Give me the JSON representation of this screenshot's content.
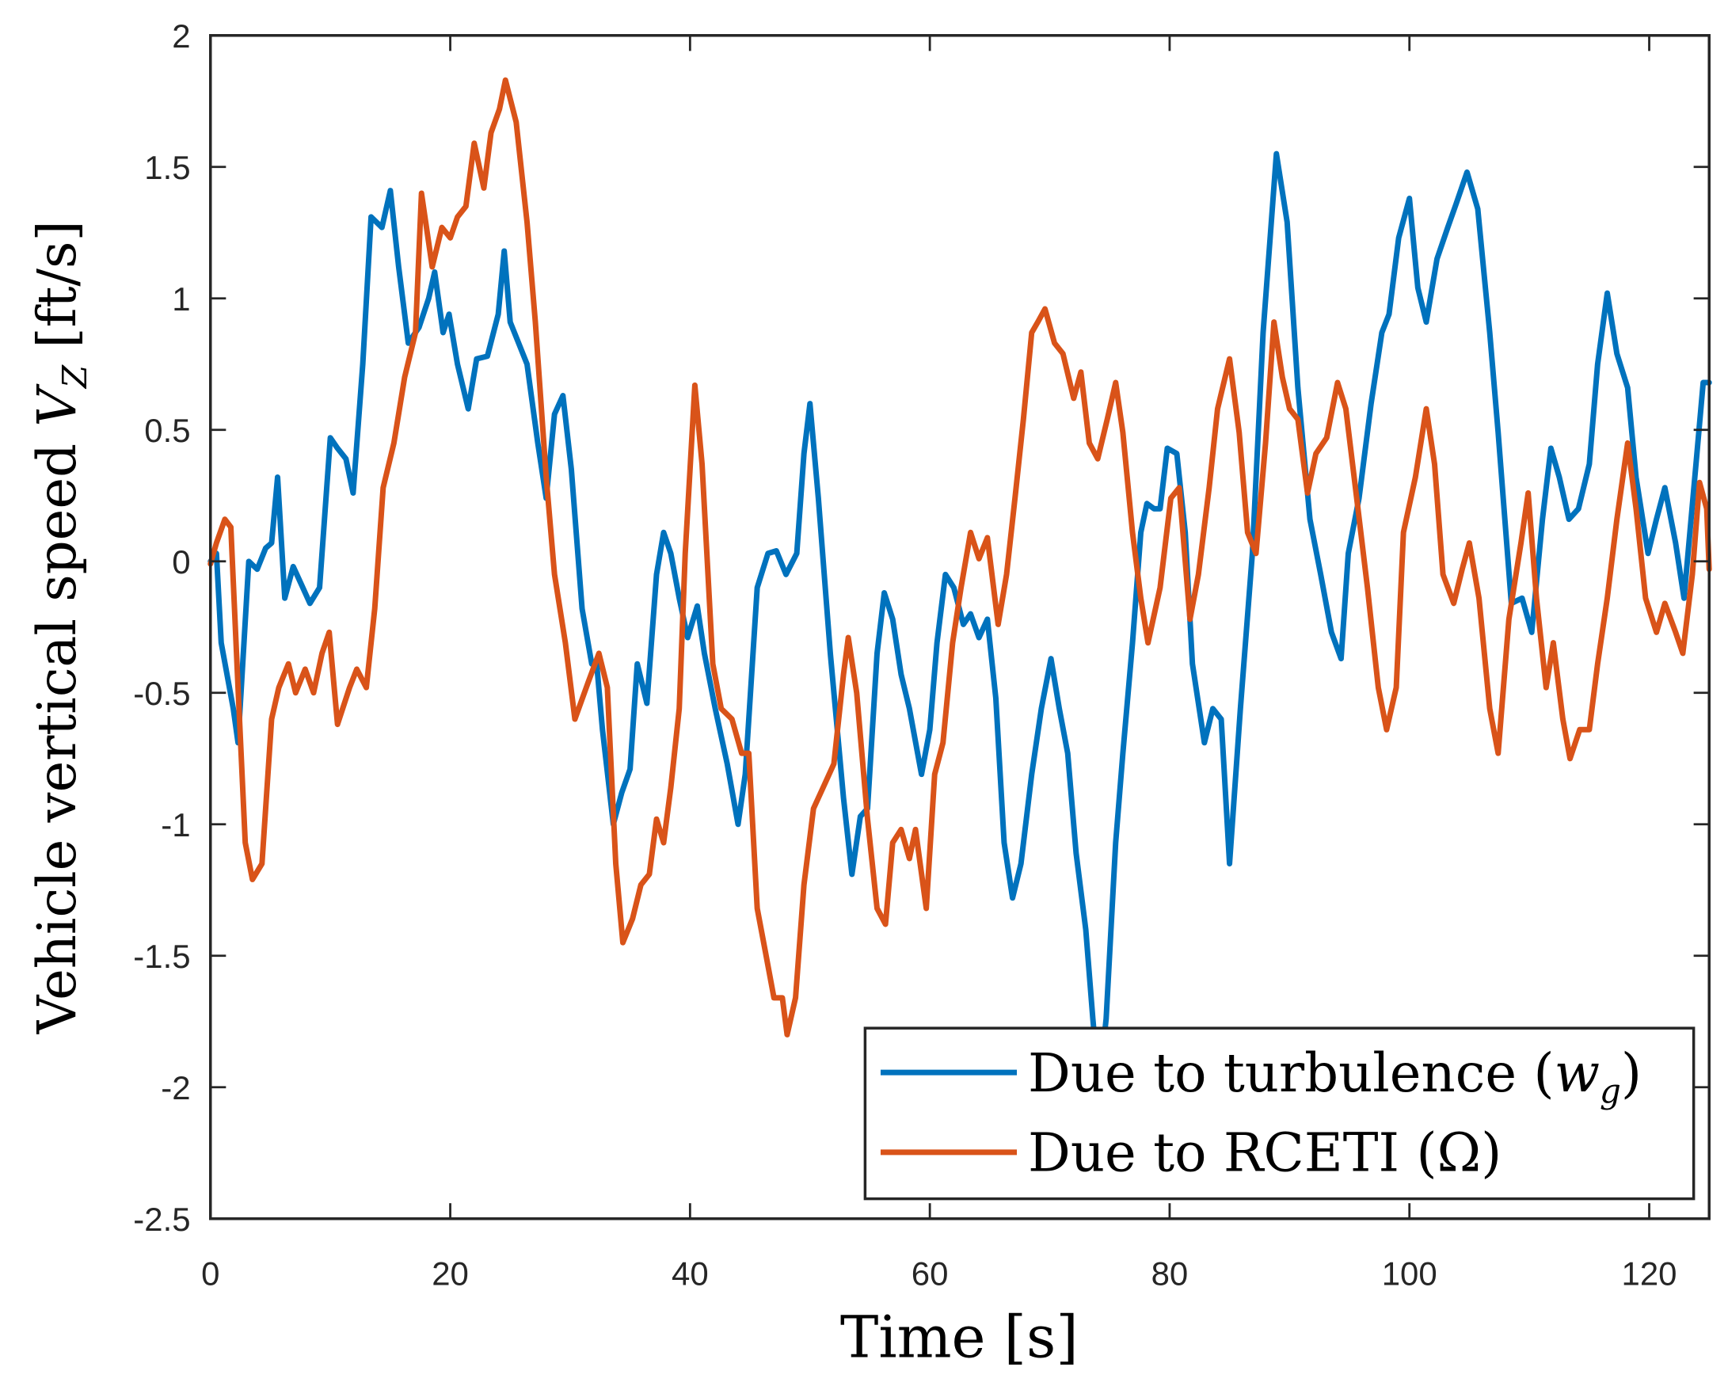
{
  "chart_data": {
    "type": "line",
    "title": "",
    "xlabel": "Time [s]",
    "ylabel": {
      "text": "Vehicle vertical speed ",
      "var": "V",
      "sub": "Z",
      "unit": " [ft/s]"
    },
    "xlim": [
      0,
      125
    ],
    "ylim": [
      -2.5,
      2
    ],
    "xticks": [
      0,
      20,
      40,
      60,
      80,
      100,
      120
    ],
    "yticks": [
      -2.5,
      -2,
      -1.5,
      -1,
      -0.5,
      0,
      0.5,
      1,
      1.5,
      2
    ],
    "grid": false,
    "legend_position": "bottom-right",
    "series": [
      {
        "name": "Due to turbulence (w_g)",
        "legend": {
          "text": "Due to turbulence (",
          "var": "w",
          "sub": "g",
          "close": ")"
        },
        "color": "#0072BD",
        "x": [
          0,
          0.5,
          0.9,
          1.9,
          2.3,
          3.2,
          3.9,
          4.6,
          5.1,
          5.6,
          6.2,
          6.9,
          7.6,
          8.3,
          9.1,
          10,
          10.6,
          11.3,
          11.9,
          12.7,
          13.4,
          14.3,
          15,
          15.7,
          16.5,
          17.4,
          18.2,
          18.7,
          19.4,
          19.9,
          20.6,
          21.5,
          22.2,
          23.1,
          24,
          24.5,
          25,
          25.7,
          26.4,
          27.3,
          28,
          28.7,
          29.4,
          30.1,
          31,
          31.8,
          32.2,
          32.7,
          33.6,
          34.3,
          35,
          35.6,
          36.4,
          37.2,
          37.8,
          38.4,
          39.1,
          39.8,
          40.6,
          41.2,
          42.1,
          43.1,
          44,
          44.6,
          45.6,
          46.5,
          47.2,
          48,
          48.9,
          49.5,
          50,
          50.7,
          51.7,
          52.8,
          53.5,
          54.2,
          54.8,
          55.6,
          56.2,
          56.9,
          57.6,
          58.3,
          59.3,
          60,
          60.6,
          61.3,
          62,
          62.8,
          63.4,
          64.1,
          64.8,
          65.5,
          66.2,
          66.9,
          67.6,
          68.5,
          69.3,
          70.1,
          70.8,
          71.5,
          72.2,
          73,
          73.6,
          74.1,
          74.7,
          75.5,
          76.1,
          76.9,
          77.6,
          78.1,
          78.7,
          79.2,
          79.8,
          80.6,
          81.3,
          81.9,
          82.9,
          83.6,
          84.3,
          85,
          85.9,
          86.9,
          87.8,
          88.9,
          89.8,
          90.7,
          91.7,
          92.6,
          93.5,
          94.3,
          94.9,
          95.8,
          96.8,
          97.7,
          98.3,
          99.1,
          100,
          100.7,
          101.4,
          102.3,
          103.2,
          103.9,
          104.8,
          105.7,
          106.7,
          107.4,
          108.5,
          109.4,
          110.2,
          111.1,
          111.8,
          112.5,
          113.3,
          114.1,
          115,
          115.7,
          116.5,
          117.3,
          118.2,
          118.9,
          119.9,
          120.6,
          121.3,
          122.2,
          122.9,
          123.9,
          124.5,
          125
        ],
        "y": [
          0,
          0.03,
          -0.31,
          -0.56,
          -0.69,
          0,
          -0.03,
          0.05,
          0.07,
          0.32,
          -0.14,
          -0.02,
          -0.09,
          -0.16,
          -0.1,
          0.47,
          0.43,
          0.39,
          0.26,
          0.75,
          1.31,
          1.27,
          1.41,
          1.12,
          0.83,
          0.89,
          1.0,
          1.1,
          0.87,
          0.94,
          0.75,
          0.58,
          0.77,
          0.78,
          0.94,
          1.18,
          0.91,
          0.83,
          0.75,
          0.45,
          0.24,
          0.56,
          0.63,
          0.35,
          -0.18,
          -0.39,
          -0.38,
          -0.64,
          -1.0,
          -0.88,
          -0.79,
          -0.39,
          -0.54,
          -0.05,
          0.11,
          0.03,
          -0.14,
          -0.29,
          -0.17,
          -0.35,
          -0.56,
          -0.77,
          -1.0,
          -0.81,
          -0.1,
          0.03,
          0.04,
          -0.05,
          0.03,
          0.41,
          0.6,
          0.24,
          -0.35,
          -0.9,
          -1.19,
          -0.97,
          -0.94,
          -0.35,
          -0.12,
          -0.22,
          -0.43,
          -0.56,
          -0.81,
          -0.64,
          -0.31,
          -0.05,
          -0.1,
          -0.24,
          -0.2,
          -0.29,
          -0.22,
          -0.52,
          -1.07,
          -1.28,
          -1.15,
          -0.81,
          -0.56,
          -0.37,
          -0.56,
          -0.73,
          -1.11,
          -1.4,
          -1.74,
          -2.0,
          -1.74,
          -1.07,
          -0.73,
          -0.31,
          0.11,
          0.22,
          0.2,
          0.2,
          0.43,
          0.41,
          0.11,
          -0.39,
          -0.69,
          -0.56,
          -0.6,
          -1.15,
          -0.56,
          0.03,
          0.87,
          1.55,
          1.29,
          0.66,
          0.16,
          -0.05,
          -0.27,
          -0.37,
          0.03,
          0.24,
          0.6,
          0.87,
          0.94,
          1.23,
          1.38,
          1.04,
          0.91,
          1.15,
          1.27,
          1.36,
          1.48,
          1.34,
          0.87,
          0.49,
          -0.16,
          -0.14,
          -0.27,
          0.16,
          0.43,
          0.32,
          0.16,
          0.2,
          0.37,
          0.75,
          1.02,
          0.79,
          0.66,
          0.32,
          0.03,
          0.16,
          0.28,
          0.07,
          -0.14,
          0.37,
          0.68,
          0.68
        ]
      },
      {
        "name": "Due to RCETI (Ω)",
        "legend": {
          "text": "Due to RCETI (Ω)"
        },
        "color": "#D95319",
        "x": [
          0,
          0.5,
          1.2,
          1.7,
          2.3,
          2.9,
          3.5,
          4.3,
          5.1,
          5.7,
          6.5,
          7.1,
          7.9,
          8.6,
          9.3,
          9.9,
          10.6,
          11.6,
          12.2,
          13,
          13.7,
          14.4,
          15.3,
          16.2,
          17.1,
          17.6,
          18.5,
          19.3,
          20,
          20.6,
          21.3,
          22,
          22.8,
          23.4,
          24.1,
          24.6,
          25.5,
          26.4,
          27.1,
          28,
          28.7,
          29.6,
          30.4,
          31.5,
          32.4,
          33.1,
          33.8,
          34.4,
          35.2,
          35.9,
          36.6,
          37.2,
          37.8,
          38.4,
          39.1,
          39.6,
          40.4,
          41,
          41.9,
          42.6,
          43.5,
          44.3,
          44.9,
          45.6,
          46.3,
          47,
          47.7,
          48.1,
          48.8,
          49.5,
          50.3,
          51.1,
          52,
          52.8,
          53.2,
          53.9,
          54.8,
          55.6,
          56.3,
          56.9,
          57.6,
          58.3,
          58.8,
          59.7,
          60.4,
          61.1,
          61.9,
          62.6,
          63.4,
          64.1,
          64.8,
          65.7,
          66.4,
          67.1,
          67.8,
          68.5,
          69,
          69.6,
          70.4,
          71.1,
          72,
          72.6,
          73.3,
          74,
          74.8,
          75.5,
          76.1,
          76.9,
          77.6,
          78.2,
          79.2,
          80.1,
          80.8,
          81.7,
          82.4,
          83.3,
          84,
          85,
          85.8,
          86.5,
          87.2,
          88,
          88.7,
          89.4,
          90,
          90.7,
          91.5,
          92.2,
          93.1,
          94,
          94.7,
          95.6,
          96.5,
          97.4,
          98.1,
          98.9,
          99.5,
          100.5,
          101.4,
          102.1,
          102.8,
          103.7,
          104.4,
          105,
          105.8,
          106.7,
          107.4,
          108.3,
          109.3,
          109.9,
          110.6,
          111.4,
          112,
          112.8,
          113.4,
          114.2,
          115,
          115.7,
          116.5,
          117.3,
          118.2,
          118.9,
          119.7,
          120.6,
          121.3,
          122.2,
          122.8,
          123.6,
          124.2,
          124.8,
          125
        ],
        "y": [
          -0.01,
          0.07,
          0.16,
          0.13,
          -0.48,
          -1.07,
          -1.21,
          -1.15,
          -0.6,
          -0.48,
          -0.39,
          -0.5,
          -0.41,
          -0.5,
          -0.35,
          -0.27,
          -0.62,
          -0.48,
          -0.41,
          -0.48,
          -0.18,
          0.28,
          0.45,
          0.7,
          0.87,
          1.4,
          1.12,
          1.27,
          1.23,
          1.31,
          1.35,
          1.59,
          1.42,
          1.63,
          1.72,
          1.83,
          1.67,
          1.29,
          0.91,
          0.32,
          -0.05,
          -0.31,
          -0.6,
          -0.46,
          -0.35,
          -0.48,
          -1.15,
          -1.45,
          -1.36,
          -1.23,
          -1.19,
          -0.98,
          -1.07,
          -0.86,
          -0.56,
          0.03,
          0.67,
          0.37,
          -0.39,
          -0.56,
          -0.6,
          -0.73,
          -0.73,
          -1.32,
          -1.49,
          -1.66,
          -1.66,
          -1.8,
          -1.66,
          -1.23,
          -0.94,
          -0.86,
          -0.77,
          -0.43,
          -0.29,
          -0.5,
          -0.98,
          -1.32,
          -1.38,
          -1.07,
          -1.02,
          -1.13,
          -1.02,
          -1.32,
          -0.81,
          -0.69,
          -0.31,
          -0.1,
          0.11,
          0.01,
          0.09,
          -0.24,
          -0.05,
          0.24,
          0.54,
          0.87,
          0.91,
          0.96,
          0.83,
          0.79,
          0.62,
          0.72,
          0.45,
          0.39,
          0.54,
          0.68,
          0.49,
          0.11,
          -0.14,
          -0.31,
          -0.1,
          0.24,
          0.28,
          -0.22,
          -0.05,
          0.28,
          0.58,
          0.77,
          0.49,
          0.11,
          0.03,
          0.45,
          0.91,
          0.7,
          0.58,
          0.54,
          0.26,
          0.41,
          0.47,
          0.68,
          0.58,
          0.24,
          -0.1,
          -0.48,
          -0.64,
          -0.48,
          0.11,
          0.32,
          0.58,
          0.37,
          -0.05,
          -0.16,
          -0.03,
          0.07,
          -0.14,
          -0.56,
          -0.73,
          -0.22,
          0.07,
          0.26,
          -0.14,
          -0.48,
          -0.31,
          -0.6,
          -0.75,
          -0.64,
          -0.64,
          -0.39,
          -0.14,
          0.16,
          0.45,
          0.2,
          -0.14,
          -0.27,
          -0.16,
          -0.27,
          -0.35,
          -0.05,
          0.3,
          0.2,
          -0.03
        ]
      }
    ]
  }
}
